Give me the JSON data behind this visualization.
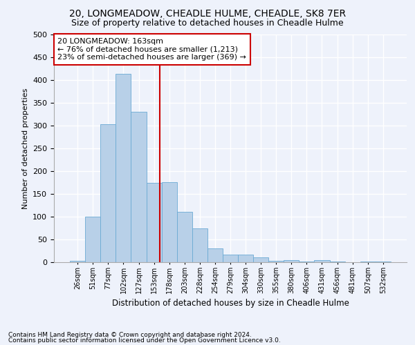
{
  "title": "20, LONGMEADOW, CHEADLE HULME, CHEADLE, SK8 7ER",
  "subtitle": "Size of property relative to detached houses in Cheadle Hulme",
  "xlabel": "Distribution of detached houses by size in Cheadle Hulme",
  "ylabel": "Number of detached properties",
  "footer1": "Contains HM Land Registry data © Crown copyright and database right 2024.",
  "footer2": "Contains public sector information licensed under the Open Government Licence v3.0.",
  "annotation_line1": "20 LONGMEADOW: 163sqm",
  "annotation_line2": "← 76% of detached houses are smaller (1,213)",
  "annotation_line3": "23% of semi-detached houses are larger (369) →",
  "bar_labels": [
    "26sqm",
    "51sqm",
    "77sqm",
    "102sqm",
    "127sqm",
    "153sqm",
    "178sqm",
    "203sqm",
    "228sqm",
    "254sqm",
    "279sqm",
    "304sqm",
    "330sqm",
    "355sqm",
    "380sqm",
    "406sqm",
    "431sqm",
    "456sqm",
    "481sqm",
    "507sqm",
    "532sqm"
  ],
  "bar_values": [
    3,
    100,
    303,
    413,
    330,
    175,
    176,
    110,
    75,
    30,
    16,
    16,
    10,
    3,
    4,
    1,
    5,
    1,
    0,
    2,
    1
  ],
  "bar_color": "#b8d0e8",
  "bar_edge_color": "#6aaad4",
  "vline_color": "#cc0000",
  "vline_x": 5.4,
  "ylim": [
    0,
    500
  ],
  "yticks": [
    0,
    50,
    100,
    150,
    200,
    250,
    300,
    350,
    400,
    450,
    500
  ],
  "bg_color": "#eef2fb",
  "plot_bg_color": "#eef2fb",
  "grid_color": "#ffffff",
  "title_fontsize": 10,
  "subtitle_fontsize": 9,
  "xlabel_fontsize": 8.5,
  "ylabel_fontsize": 8,
  "annotation_box_edge_color": "#cc0000",
  "annotation_fontsize": 8,
  "footer_fontsize": 6.5
}
